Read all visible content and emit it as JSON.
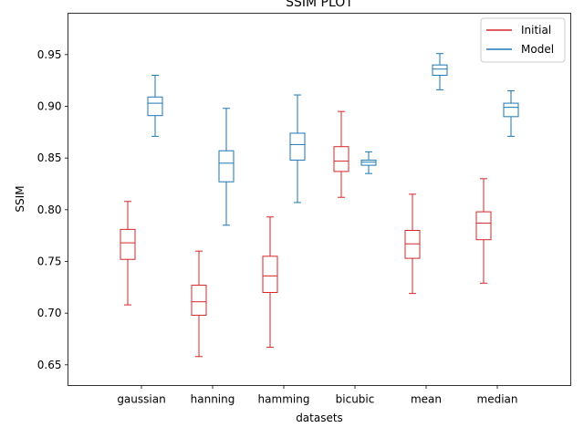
{
  "chart_data": {
    "type": "box",
    "title": "SSIM PLOT",
    "xlabel": "datasets",
    "ylabel": "SSIM",
    "ylim": [
      0.63,
      0.99
    ],
    "yticks": [
      0.65,
      0.7,
      0.75,
      0.8,
      0.85,
      0.9,
      0.95
    ],
    "ytick_labels": [
      "0.65",
      "0.70",
      "0.75",
      "0.80",
      "0.85",
      "0.90",
      "0.95"
    ],
    "categories": [
      "gaussian",
      "hanning",
      "hamming",
      "bicubic",
      "mean",
      "median"
    ],
    "legend_position": "top-right",
    "grid": false,
    "series": [
      {
        "name": "Initial",
        "color": "#d62728",
        "boxes": [
          {
            "whislo": 0.708,
            "q1": 0.752,
            "med": 0.768,
            "q3": 0.781,
            "whishi": 0.808
          },
          {
            "whislo": 0.658,
            "q1": 0.698,
            "med": 0.711,
            "q3": 0.727,
            "whishi": 0.76
          },
          {
            "whislo": 0.667,
            "q1": 0.72,
            "med": 0.736,
            "q3": 0.755,
            "whishi": 0.793
          },
          {
            "whislo": 0.812,
            "q1": 0.837,
            "med": 0.847,
            "q3": 0.861,
            "whishi": 0.895
          },
          {
            "whislo": 0.719,
            "q1": 0.753,
            "med": 0.767,
            "q3": 0.78,
            "whishi": 0.815
          },
          {
            "whislo": 0.729,
            "q1": 0.771,
            "med": 0.787,
            "q3": 0.798,
            "whishi": 0.83
          }
        ]
      },
      {
        "name": "Model",
        "color": "#1f77b4",
        "boxes": [
          {
            "whislo": 0.871,
            "q1": 0.891,
            "med": 0.903,
            "q3": 0.909,
            "whishi": 0.93
          },
          {
            "whislo": 0.785,
            "q1": 0.827,
            "med": 0.845,
            "q3": 0.857,
            "whishi": 0.898
          },
          {
            "whislo": 0.807,
            "q1": 0.848,
            "med": 0.863,
            "q3": 0.874,
            "whishi": 0.911
          },
          {
            "whislo": 0.835,
            "q1": 0.843,
            "med": 0.846,
            "q3": 0.848,
            "whishi": 0.856
          },
          {
            "whislo": 0.916,
            "q1": 0.93,
            "med": 0.936,
            "q3": 0.94,
            "whishi": 0.951
          },
          {
            "whislo": 0.871,
            "q1": 0.89,
            "med": 0.899,
            "q3": 0.903,
            "whishi": 0.915
          }
        ]
      }
    ]
  }
}
